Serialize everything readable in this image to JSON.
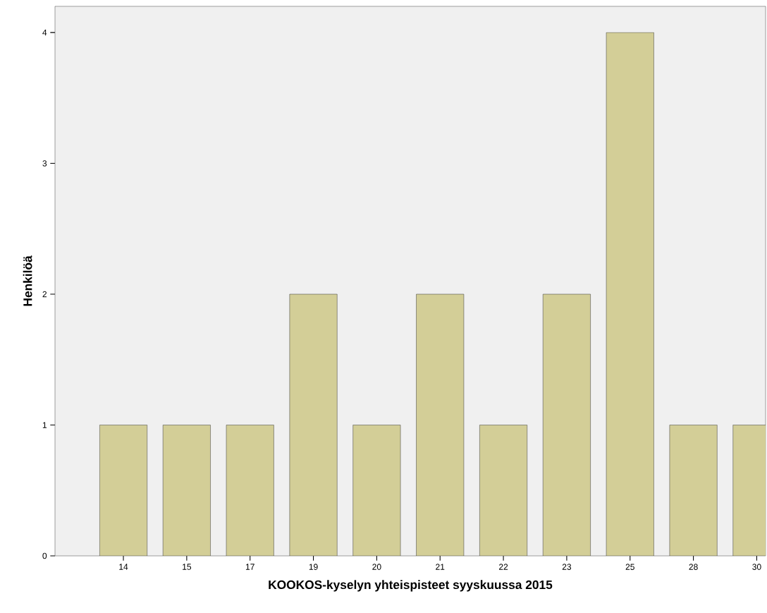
{
  "chart_data": {
    "type": "bar",
    "xlabel": "KOOKOS-kyselyn yhteispisteet syyskuussa 2015",
    "ylabel": "Henkilöä",
    "categories": [
      "14",
      "15",
      "17",
      "19",
      "20",
      "21",
      "22",
      "23",
      "25",
      "28",
      "30"
    ],
    "values": [
      1,
      1,
      1,
      2,
      1,
      2,
      1,
      2,
      4,
      1,
      1
    ],
    "color": "#d3ce97",
    "ylim": [
      0,
      4.2
    ],
    "yticks": [
      0,
      1,
      2,
      3,
      4
    ],
    "grid": false
  }
}
